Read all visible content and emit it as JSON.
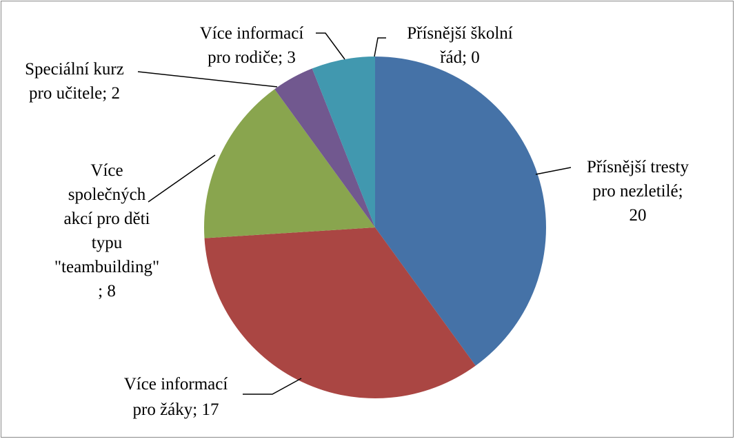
{
  "chart_data": {
    "type": "pie",
    "values": [
      20,
      17,
      8,
      2,
      3,
      0
    ],
    "value_labels": [
      [
        "Přísnější tresty",
        "pro nezletilé;",
        "20"
      ],
      [
        "Více informací",
        "pro žáky; 17"
      ],
      [
        "Více",
        "společných",
        "akcí pro děti",
        "typu",
        "\"teambuilding\"",
        "; 8"
      ],
      [
        "Speciální kurz",
        "pro učitele; 2"
      ],
      [
        "Více informací",
        "pro rodiče; 3"
      ],
      [
        "Přísnější školní",
        "řád; 0"
      ]
    ],
    "colors": [
      "#4572a7",
      "#aa4643",
      "#89a54e",
      "#71588f",
      "#4198af",
      "#db843d"
    ]
  }
}
